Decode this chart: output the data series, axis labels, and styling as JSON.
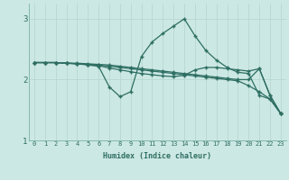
{
  "xlabel": "Humidex (Indice chaleur)",
  "xlim": [
    -0.5,
    23.5
  ],
  "ylim": [
    1,
    3.25
  ],
  "yticks": [
    1,
    2,
    3
  ],
  "xticks": [
    0,
    1,
    2,
    3,
    4,
    5,
    6,
    7,
    8,
    9,
    10,
    11,
    12,
    13,
    14,
    15,
    16,
    17,
    18,
    19,
    20,
    21,
    22,
    23
  ],
  "bg_color": "#cce8e4",
  "line_color": "#2e6e62",
  "grid_color": "#b8d8d2",
  "line1_x": [
    0,
    1,
    2,
    3,
    4,
    5,
    6,
    7,
    8,
    9,
    10,
    11,
    12,
    13,
    14,
    15,
    16,
    17,
    18,
    19,
    20,
    21,
    22,
    23
  ],
  "line1_y": [
    2.28,
    2.28,
    2.28,
    2.27,
    2.26,
    2.25,
    2.24,
    2.22,
    2.2,
    2.18,
    2.16,
    2.14,
    2.12,
    2.1,
    2.08,
    2.06,
    2.04,
    2.02,
    2.0,
    1.98,
    1.9,
    1.8,
    1.68,
    1.44
  ],
  "line2_x": [
    0,
    1,
    2,
    3,
    4,
    5,
    6,
    7,
    8,
    9,
    10,
    11,
    12,
    13,
    14,
    15,
    16,
    17,
    18,
    19,
    20,
    21,
    22,
    23
  ],
  "line2_y": [
    2.28,
    2.28,
    2.28,
    2.27,
    2.26,
    2.24,
    2.22,
    1.88,
    1.72,
    1.8,
    2.38,
    2.62,
    2.76,
    2.88,
    3.0,
    2.72,
    2.48,
    2.32,
    2.2,
    2.12,
    2.1,
    1.74,
    1.68,
    1.44
  ],
  "line3_x": [
    0,
    1,
    2,
    3,
    4,
    5,
    6,
    7,
    8,
    9,
    10,
    11,
    12,
    13,
    14,
    15,
    16,
    17,
    18,
    19,
    20,
    21,
    22,
    23
  ],
  "line3_y": [
    2.28,
    2.28,
    2.28,
    2.27,
    2.26,
    2.25,
    2.23,
    2.19,
    2.16,
    2.13,
    2.1,
    2.08,
    2.06,
    2.05,
    2.07,
    2.16,
    2.2,
    2.2,
    2.18,
    2.16,
    2.14,
    2.18,
    1.74,
    1.44
  ],
  "line4_x": [
    0,
    1,
    2,
    3,
    4,
    5,
    6,
    7,
    8,
    9,
    10,
    11,
    12,
    13,
    14,
    15,
    16,
    17,
    18,
    19,
    20,
    21,
    22,
    23
  ],
  "line4_y": [
    2.28,
    2.28,
    2.28,
    2.27,
    2.27,
    2.26,
    2.25,
    2.24,
    2.22,
    2.2,
    2.18,
    2.16,
    2.14,
    2.12,
    2.1,
    2.08,
    2.06,
    2.04,
    2.02,
    2.0,
    2.0,
    2.18,
    1.74,
    1.44
  ]
}
